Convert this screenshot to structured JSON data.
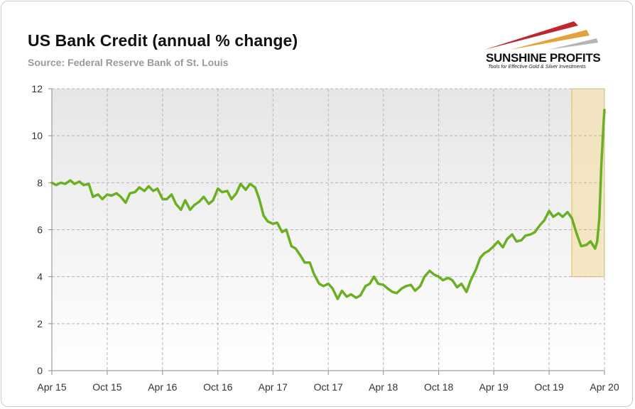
{
  "header": {
    "title": "US Bank Credit (annual % change)",
    "subtitle": "Source: Federal Reserve Bank of St. Louis"
  },
  "logo": {
    "name": "SUNSHINE PROFITS",
    "tagline": "Tools for Effective Gold & Silver Investments",
    "colors": [
      "#c0272d",
      "#e3a33a",
      "#a8a8a8"
    ]
  },
  "chart_data": {
    "type": "line",
    "title": "US Bank Credit (annual % change)",
    "xlabel": "",
    "ylabel": "",
    "ylim": [
      0,
      12
    ],
    "yticks": [
      0,
      2,
      4,
      6,
      8,
      10,
      12
    ],
    "xlim": [
      "2015-04",
      "2020-04"
    ],
    "x_tick_labels": [
      "Apr 15",
      "Oct 15",
      "Apr 16",
      "Oct 16",
      "Apr 17",
      "Oct 17",
      "Apr 18",
      "Oct 18",
      "Apr 19",
      "Oct 19",
      "Apr 20"
    ],
    "x_tick_dates": [
      "2015-04-01",
      "2015-10-01",
      "2016-04-01",
      "2016-10-01",
      "2017-04-01",
      "2017-10-01",
      "2018-04-01",
      "2018-10-01",
      "2019-04-01",
      "2019-10-01",
      "2020-04-01"
    ],
    "grid": true,
    "line_color": "#6ab023",
    "highlight": {
      "x_start": "2019-12-15",
      "x_end": "2020-04-01",
      "y_start": 4,
      "y_end": 12,
      "fill": "#f3e3b8",
      "border": "#e8b75a"
    },
    "series": [
      {
        "name": "",
        "points": [
          [
            "2015-04-01",
            8.0
          ],
          [
            "2015-04-15",
            7.9
          ],
          [
            "2015-05-01",
            8.0
          ],
          [
            "2015-05-15",
            7.95
          ],
          [
            "2015-06-01",
            8.1
          ],
          [
            "2015-06-15",
            7.95
          ],
          [
            "2015-07-01",
            8.05
          ],
          [
            "2015-07-15",
            7.9
          ],
          [
            "2015-08-01",
            7.95
          ],
          [
            "2015-08-15",
            7.4
          ],
          [
            "2015-09-01",
            7.5
          ],
          [
            "2015-09-15",
            7.3
          ],
          [
            "2015-10-01",
            7.5
          ],
          [
            "2015-10-15",
            7.45
          ],
          [
            "2015-11-01",
            7.55
          ],
          [
            "2015-11-15",
            7.4
          ],
          [
            "2015-12-01",
            7.15
          ],
          [
            "2015-12-15",
            7.55
          ],
          [
            "2016-01-01",
            7.6
          ],
          [
            "2016-01-15",
            7.8
          ],
          [
            "2016-02-01",
            7.65
          ],
          [
            "2016-02-15",
            7.85
          ],
          [
            "2016-03-01",
            7.65
          ],
          [
            "2016-03-15",
            7.75
          ],
          [
            "2016-04-01",
            7.3
          ],
          [
            "2016-04-15",
            7.3
          ],
          [
            "2016-05-01",
            7.5
          ],
          [
            "2016-05-15",
            7.1
          ],
          [
            "2016-06-01",
            6.85
          ],
          [
            "2016-06-15",
            7.25
          ],
          [
            "2016-07-01",
            6.85
          ],
          [
            "2016-07-15",
            7.05
          ],
          [
            "2016-08-01",
            7.2
          ],
          [
            "2016-08-15",
            7.4
          ],
          [
            "2016-09-01",
            7.1
          ],
          [
            "2016-09-15",
            7.25
          ],
          [
            "2016-10-01",
            7.75
          ],
          [
            "2016-10-15",
            7.6
          ],
          [
            "2016-11-01",
            7.65
          ],
          [
            "2016-11-15",
            7.3
          ],
          [
            "2016-12-01",
            7.55
          ],
          [
            "2016-12-15",
            7.95
          ],
          [
            "2017-01-01",
            7.7
          ],
          [
            "2017-01-15",
            7.95
          ],
          [
            "2017-02-01",
            7.8
          ],
          [
            "2017-02-15",
            7.3
          ],
          [
            "2017-03-01",
            6.6
          ],
          [
            "2017-03-15",
            6.35
          ],
          [
            "2017-04-01",
            6.25
          ],
          [
            "2017-04-15",
            6.3
          ],
          [
            "2017-05-01",
            5.9
          ],
          [
            "2017-05-15",
            6.0
          ],
          [
            "2017-06-01",
            5.3
          ],
          [
            "2017-06-15",
            5.2
          ],
          [
            "2017-07-01",
            4.9
          ],
          [
            "2017-07-15",
            4.6
          ],
          [
            "2017-08-01",
            4.6
          ],
          [
            "2017-08-15",
            4.1
          ],
          [
            "2017-09-01",
            3.7
          ],
          [
            "2017-09-15",
            3.6
          ],
          [
            "2017-10-01",
            3.7
          ],
          [
            "2017-10-15",
            3.5
          ],
          [
            "2017-11-01",
            3.05
          ],
          [
            "2017-11-15",
            3.4
          ],
          [
            "2017-12-01",
            3.15
          ],
          [
            "2017-12-15",
            3.25
          ],
          [
            "2018-01-01",
            3.1
          ],
          [
            "2018-01-15",
            3.2
          ],
          [
            "2018-02-01",
            3.6
          ],
          [
            "2018-02-15",
            3.7
          ],
          [
            "2018-03-01",
            4.0
          ],
          [
            "2018-03-15",
            3.7
          ],
          [
            "2018-04-01",
            3.65
          ],
          [
            "2018-04-15",
            3.5
          ],
          [
            "2018-05-01",
            3.35
          ],
          [
            "2018-05-15",
            3.3
          ],
          [
            "2018-06-01",
            3.5
          ],
          [
            "2018-06-15",
            3.6
          ],
          [
            "2018-07-01",
            3.65
          ],
          [
            "2018-07-15",
            3.4
          ],
          [
            "2018-08-01",
            3.6
          ],
          [
            "2018-08-15",
            4.0
          ],
          [
            "2018-09-01",
            4.25
          ],
          [
            "2018-09-15",
            4.1
          ],
          [
            "2018-10-01",
            4.0
          ],
          [
            "2018-10-15",
            3.85
          ],
          [
            "2018-11-01",
            3.95
          ],
          [
            "2018-11-15",
            3.85
          ],
          [
            "2018-12-01",
            3.55
          ],
          [
            "2018-12-15",
            3.7
          ],
          [
            "2019-01-01",
            3.35
          ],
          [
            "2019-01-15",
            3.85
          ],
          [
            "2019-02-01",
            4.3
          ],
          [
            "2019-02-15",
            4.8
          ],
          [
            "2019-03-01",
            5.0
          ],
          [
            "2019-03-15",
            5.1
          ],
          [
            "2019-04-01",
            5.3
          ],
          [
            "2019-04-15",
            5.5
          ],
          [
            "2019-05-01",
            5.25
          ],
          [
            "2019-05-15",
            5.6
          ],
          [
            "2019-06-01",
            5.8
          ],
          [
            "2019-06-15",
            5.5
          ],
          [
            "2019-07-01",
            5.55
          ],
          [
            "2019-07-15",
            5.75
          ],
          [
            "2019-08-01",
            5.8
          ],
          [
            "2019-08-15",
            5.9
          ],
          [
            "2019-09-01",
            6.2
          ],
          [
            "2019-09-15",
            6.4
          ],
          [
            "2019-10-01",
            6.8
          ],
          [
            "2019-10-15",
            6.55
          ],
          [
            "2019-11-01",
            6.7
          ],
          [
            "2019-11-15",
            6.55
          ],
          [
            "2019-12-01",
            6.75
          ],
          [
            "2019-12-15",
            6.5
          ],
          [
            "2020-01-01",
            5.8
          ],
          [
            "2020-01-15",
            5.3
          ],
          [
            "2020-02-01",
            5.35
          ],
          [
            "2020-02-15",
            5.5
          ],
          [
            "2020-03-01",
            5.2
          ],
          [
            "2020-03-08",
            5.5
          ],
          [
            "2020-03-15",
            6.5
          ],
          [
            "2020-03-22",
            8.8
          ],
          [
            "2020-03-29",
            10.5
          ],
          [
            "2020-04-01",
            11.1
          ]
        ]
      }
    ]
  }
}
